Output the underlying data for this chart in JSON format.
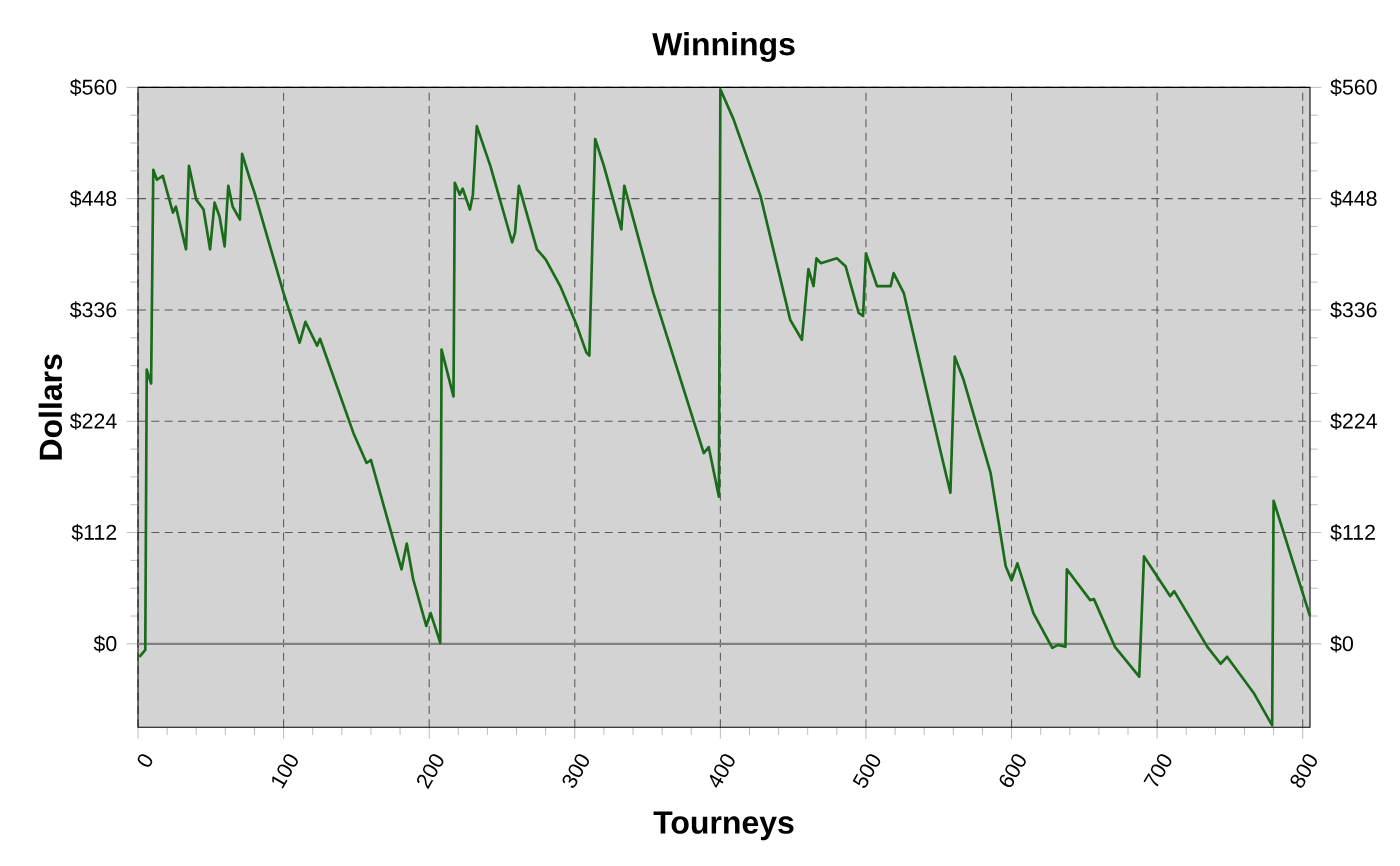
{
  "chart_data": {
    "type": "line",
    "title": "Winnings",
    "xlabel": "Tourneys",
    "ylabel": "Dollars",
    "xlim": [
      0,
      805
    ],
    "xticks": [
      0,
      100,
      200,
      300,
      400,
      500,
      600,
      700,
      800
    ],
    "ylim": [
      -84,
      560
    ],
    "yticks": [
      {
        "value": 0,
        "label": "$0"
      },
      {
        "value": 112,
        "label": "$112"
      },
      {
        "value": 224,
        "label": "$224"
      },
      {
        "value": 336,
        "label": "$336"
      },
      {
        "value": 448,
        "label": "$448"
      },
      {
        "value": 560,
        "label": "$560"
      }
    ],
    "y2lim": [
      -84,
      560
    ],
    "y2ticks": [
      {
        "value": 0,
        "label": "$0"
      },
      {
        "value": 112,
        "label": "$112"
      },
      {
        "value": 224,
        "label": "$224"
      },
      {
        "value": 336,
        "label": "$336"
      },
      {
        "value": 448,
        "label": "$448"
      },
      {
        "value": 560,
        "label": "$560"
      }
    ],
    "grid": true,
    "marker": "none",
    "line_style": "solid",
    "ref_lines": [
      {
        "axis": "y",
        "value": 0,
        "color": "#808080"
      }
    ],
    "series": [
      {
        "color": "#1a6b1a",
        "x": [
          1,
          5,
          6,
          9,
          10.5,
          13,
          17,
          24,
          26,
          33,
          35,
          40,
          45,
          49.5,
          52.6,
          56,
          59.5,
          62,
          65,
          70,
          71.5,
          77,
          80,
          100,
          111,
          115,
          123,
          125,
          148,
          157,
          160,
          181,
          184.6,
          189,
          198,
          201,
          207.6,
          208.5,
          216.7,
          217.6,
          221,
          223,
          228,
          230,
          232.7,
          242,
          257,
          259,
          261.6,
          274,
          280,
          290,
          301.5,
          308,
          310,
          314,
          320,
          332,
          334,
          354,
          388.6,
          392,
          399,
          400,
          409,
          427.5,
          448,
          456,
          460.5,
          464,
          466,
          469,
          480,
          486,
          495,
          498,
          500,
          507.6,
          517,
          519,
          526,
          551,
          558,
          561,
          567,
          585.6,
          596,
          600,
          604,
          615,
          628,
          632,
          637,
          638,
          654,
          656.6,
          671,
          687.7,
          691,
          709,
          711.7,
          734.5,
          743.6,
          748,
          766.6,
          779,
          780,
          805
        ],
        "values": [
          -13,
          -6,
          276,
          262,
          477,
          467,
          471,
          434,
          440,
          397,
          481,
          447,
          437,
          397,
          444,
          430,
          400,
          461,
          440,
          427,
          493,
          467,
          454,
          353,
          303,
          324,
          300,
          307,
          212,
          182,
          185,
          75,
          101,
          65,
          18,
          31,
          1,
          296,
          249,
          464,
          452,
          458,
          437,
          452,
          521,
          481,
          404,
          414,
          461,
          397,
          387,
          360,
          320,
          293,
          290,
          508,
          481,
          417,
          461,
          353,
          192,
          198,
          148,
          558,
          528,
          451,
          326,
          306,
          377,
          360,
          388,
          383,
          388,
          380,
          333,
          330,
          393,
          360,
          360,
          373,
          353,
          195,
          152,
          289,
          266,
          172,
          78,
          64,
          81,
          31,
          -4,
          -1,
          -3,
          75,
          44,
          45,
          -3,
          -33,
          88,
          48,
          53,
          -3,
          -20,
          -13,
          -50,
          -82,
          144,
          28
        ]
      }
    ]
  }
}
